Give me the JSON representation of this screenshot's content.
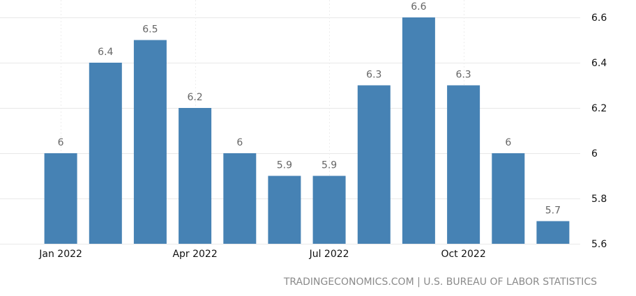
{
  "chart_data": {
    "type": "bar",
    "categories": [
      "Jan 2022",
      "Feb 2022",
      "Mar 2022",
      "Apr 2022",
      "May 2022",
      "Jun 2022",
      "Jul 2022",
      "Aug 2022",
      "Sep 2022",
      "Oct 2022",
      "Nov 2022",
      "Dec 2022"
    ],
    "values": [
      6,
      6.4,
      6.5,
      6.2,
      6,
      5.9,
      5.9,
      6.3,
      6.6,
      6.3,
      6,
      5.7
    ],
    "value_labels": [
      "6",
      "6.4",
      "6.5",
      "6.2",
      "6",
      "5.9",
      "5.9",
      "6.3",
      "6.6",
      "6.3",
      "6",
      "5.7"
    ],
    "x_tick_labels": [
      {
        "category_index": 0,
        "label": "Jan 2022"
      },
      {
        "category_index": 3,
        "label": "Apr 2022"
      },
      {
        "category_index": 6,
        "label": "Jul 2022"
      },
      {
        "category_index": 9,
        "label": "Oct 2022"
      }
    ],
    "y_ticks": [
      5.6,
      5.8,
      6,
      6.2,
      6.4,
      6.6
    ],
    "y_tick_labels": [
      "5.6",
      "5.8",
      "6",
      "6.2",
      "6.4",
      "6.6"
    ],
    "ylim": [
      5.6,
      6.6
    ],
    "title": "",
    "xlabel": "",
    "ylabel": "",
    "y_axis_side": "right",
    "grid": true,
    "bar_color": "#4682b4"
  },
  "source": "TRADINGECONOMICS.COM | U.S. BUREAU OF LABOR STATISTICS"
}
